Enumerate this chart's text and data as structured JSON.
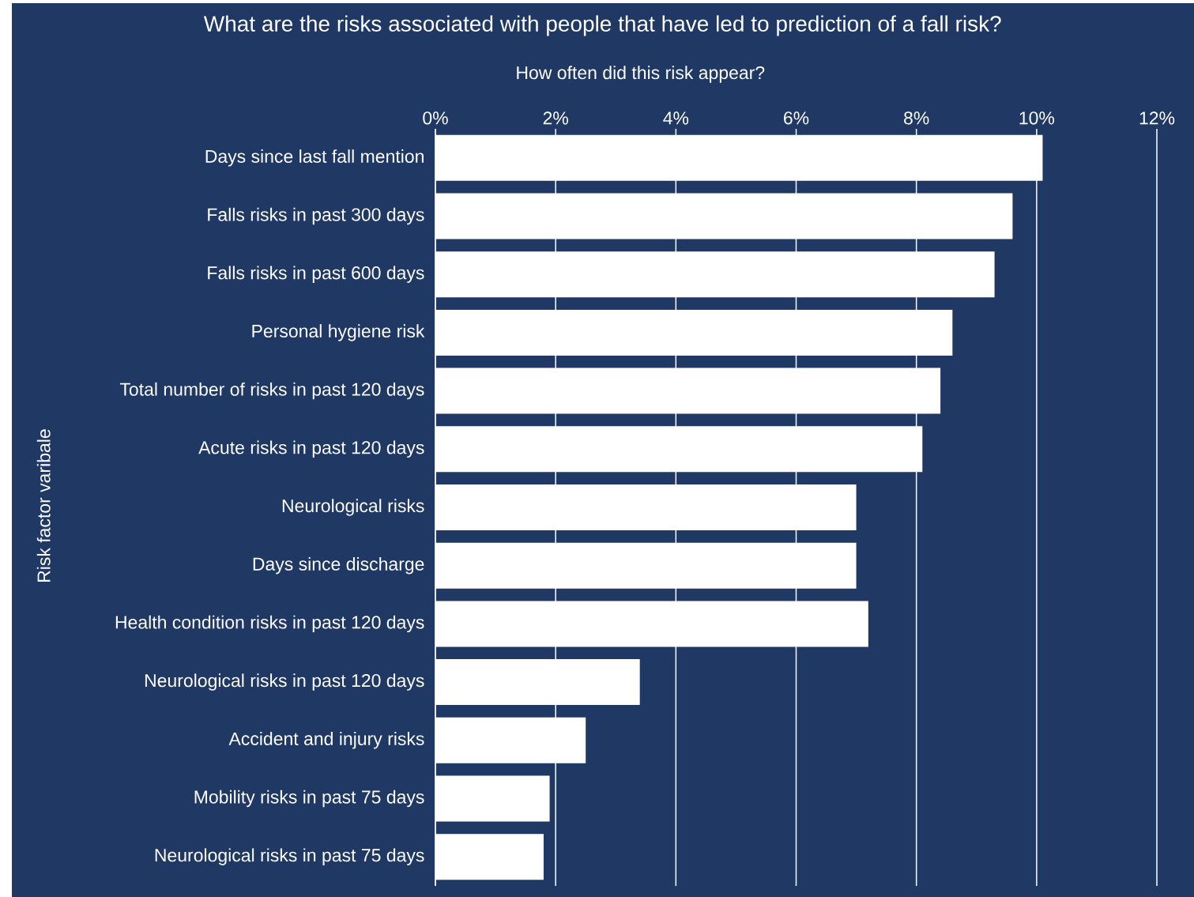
{
  "chart_data": {
    "type": "bar",
    "orientation": "horizontal",
    "title": "What are the risks associated with people that have led to prediction of a fall risk?",
    "xlabel": "How often did this risk appear?",
    "ylabel": "Risk factor varibale",
    "categories": [
      "Days since last fall mention",
      "Falls risks in past 300 days",
      "Falls risks in past 600 days",
      "Personal hygiene risk",
      "Total number of risks in past 120 days",
      "Acute risks in past 120 days",
      "Neurological risks",
      "Days since discharge",
      "Health condition risks in past 120 days",
      "Neurological risks in past 120 days",
      "Accident and injury risks",
      "Mobility risks in past 75 days",
      "Neurological risks in past 75 days"
    ],
    "values": [
      10.1,
      9.6,
      9.3,
      8.6,
      8.4,
      8.1,
      7.0,
      7.0,
      7.2,
      3.4,
      2.5,
      1.9,
      1.8
    ],
    "color": "#ffffff",
    "xlim": [
      0,
      12
    ],
    "xticks": [
      {
        "value": 0,
        "label": "0%"
      },
      {
        "value": 2,
        "label": "2%"
      },
      {
        "value": 4,
        "label": "4%"
      },
      {
        "value": 6,
        "label": "6%"
      },
      {
        "value": 8,
        "label": "8%"
      },
      {
        "value": 10,
        "label": "10%"
      },
      {
        "value": 12,
        "label": "12%"
      }
    ],
    "grid": "x"
  }
}
